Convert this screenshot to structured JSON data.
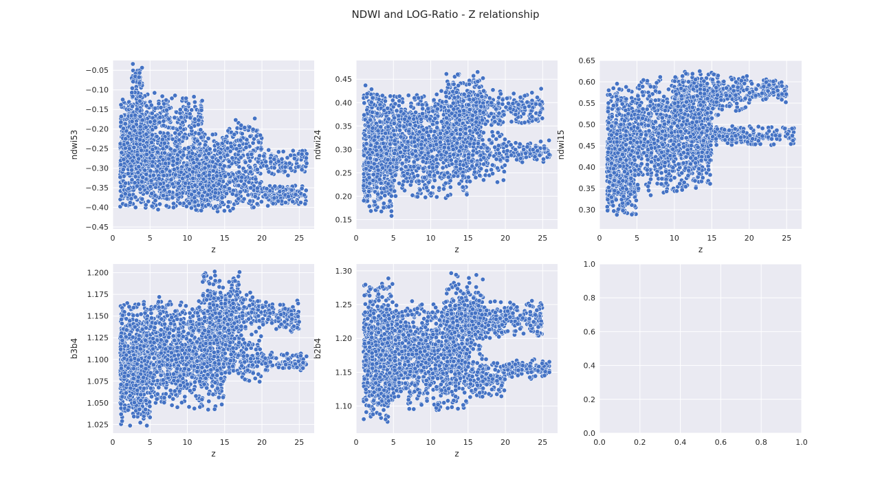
{
  "figure": {
    "title": "NDWI and LOG-Ratio - Z relationship",
    "point_color": "#4472c4",
    "background_color": "#eaeaf2"
  },
  "chart_data": [
    {
      "type": "scatter",
      "xlabel": "z",
      "ylabel": "ndwi53",
      "xlim": [
        0,
        27
      ],
      "ylim": [
        -0.455,
        -0.025
      ],
      "xticks": [
        0,
        5,
        10,
        15,
        20,
        25
      ],
      "xtick_labels": [
        "0",
        "5",
        "10",
        "15",
        "20",
        "25"
      ],
      "yticks": [
        -0.45,
        -0.4,
        -0.35,
        -0.3,
        -0.25,
        -0.2,
        -0.15,
        -0.1,
        -0.05
      ],
      "ytick_labels": [
        "−0.45",
        "−0.40",
        "−0.35",
        "−0.30",
        "−0.25",
        "−0.20",
        "−0.15",
        "−0.10",
        "−0.05"
      ],
      "grid": true,
      "clusters": [
        {
          "x": [
            1,
            5
          ],
          "y": [
            -0.41,
            -0.1
          ],
          "n": 700
        },
        {
          "x": [
            2.5,
            4
          ],
          "y": [
            -0.2,
            -0.03
          ],
          "n": 80
        },
        {
          "x": [
            5,
            15
          ],
          "y": [
            -0.42,
            -0.2
          ],
          "n": 900
        },
        {
          "x": [
            5,
            12
          ],
          "y": [
            -0.25,
            -0.1
          ],
          "n": 200
        },
        {
          "x": [
            10,
            20
          ],
          "y": [
            -0.41,
            -0.26
          ],
          "n": 400
        },
        {
          "x": [
            15,
            20
          ],
          "y": [
            -0.3,
            -0.17
          ],
          "n": 120
        },
        {
          "x": [
            20,
            26
          ],
          "y": [
            -0.4,
            -0.34
          ],
          "n": 150
        },
        {
          "x": [
            20,
            26
          ],
          "y": [
            -0.32,
            -0.25
          ],
          "n": 100
        }
      ]
    },
    {
      "type": "scatter",
      "xlabel": "z",
      "ylabel": "ndwi24",
      "xlim": [
        0,
        27
      ],
      "ylim": [
        0.13,
        0.49
      ],
      "xticks": [
        0,
        5,
        10,
        15,
        20,
        25
      ],
      "xtick_labels": [
        "0",
        "5",
        "10",
        "15",
        "20",
        "25"
      ],
      "yticks": [
        0.15,
        0.2,
        0.25,
        0.3,
        0.35,
        0.4,
        0.45
      ],
      "ytick_labels": [
        "0.15",
        "0.20",
        "0.25",
        "0.30",
        "0.35",
        "0.40",
        "0.45"
      ],
      "grid": true,
      "clusters": [
        {
          "x": [
            1,
            5
          ],
          "y": [
            0.15,
            0.44
          ],
          "n": 700
        },
        {
          "x": [
            5,
            15
          ],
          "y": [
            0.19,
            0.43
          ],
          "n": 1000
        },
        {
          "x": [
            12,
            17
          ],
          "y": [
            0.3,
            0.47
          ],
          "n": 300
        },
        {
          "x": [
            15,
            20
          ],
          "y": [
            0.22,
            0.35
          ],
          "n": 150
        },
        {
          "x": [
            15,
            20
          ],
          "y": [
            0.33,
            0.44
          ],
          "n": 150
        },
        {
          "x": [
            20,
            25
          ],
          "y": [
            0.35,
            0.43
          ],
          "n": 120
        },
        {
          "x": [
            20,
            26
          ],
          "y": [
            0.27,
            0.32
          ],
          "n": 100
        }
      ]
    },
    {
      "type": "scatter",
      "xlabel": "z",
      "ylabel": "ndwi15",
      "xlim": [
        0,
        27
      ],
      "ylim": [
        0.255,
        0.65
      ],
      "xticks": [
        0,
        5,
        10,
        15,
        20,
        25
      ],
      "xtick_labels": [
        "0",
        "5",
        "10",
        "15",
        "20",
        "25"
      ],
      "yticks": [
        0.3,
        0.35,
        0.4,
        0.45,
        0.5,
        0.55,
        0.6,
        0.65
      ],
      "ytick_labels": [
        "0.30",
        "0.35",
        "0.40",
        "0.45",
        "0.50",
        "0.55",
        "0.60",
        "0.65"
      ],
      "grid": true,
      "clusters": [
        {
          "x": [
            1,
            5
          ],
          "y": [
            0.27,
            0.6
          ],
          "n": 700
        },
        {
          "x": [
            5,
            15
          ],
          "y": [
            0.33,
            0.62
          ],
          "n": 1000
        },
        {
          "x": [
            10,
            16
          ],
          "y": [
            0.5,
            0.63
          ],
          "n": 250
        },
        {
          "x": [
            15,
            20
          ],
          "y": [
            0.45,
            0.5
          ],
          "n": 120
        },
        {
          "x": [
            15,
            20
          ],
          "y": [
            0.53,
            0.62
          ],
          "n": 150
        },
        {
          "x": [
            20,
            25
          ],
          "y": [
            0.55,
            0.61
          ],
          "n": 120
        },
        {
          "x": [
            20,
            26
          ],
          "y": [
            0.45,
            0.5
          ],
          "n": 80
        }
      ]
    },
    {
      "type": "scatter",
      "xlabel": "z",
      "ylabel": "b3b4",
      "xlim": [
        0,
        27
      ],
      "ylim": [
        1.015,
        1.21
      ],
      "xticks": [
        0,
        5,
        10,
        15,
        20,
        25
      ],
      "xtick_labels": [
        "0",
        "5",
        "10",
        "15",
        "20",
        "25"
      ],
      "yticks": [
        1.025,
        1.05,
        1.075,
        1.1,
        1.125,
        1.15,
        1.175,
        1.2
      ],
      "ytick_labels": [
        "1.025",
        "1.050",
        "1.075",
        "1.100",
        "1.125",
        "1.150",
        "1.175",
        "1.200"
      ],
      "grid": true,
      "clusters": [
        {
          "x": [
            1,
            5
          ],
          "y": [
            1.022,
            1.17
          ],
          "n": 700
        },
        {
          "x": [
            5,
            15
          ],
          "y": [
            1.04,
            1.175
          ],
          "n": 1000
        },
        {
          "x": [
            12,
            17
          ],
          "y": [
            1.1,
            1.205
          ],
          "n": 300
        },
        {
          "x": [
            15,
            20
          ],
          "y": [
            1.07,
            1.13
          ],
          "n": 150
        },
        {
          "x": [
            15,
            20
          ],
          "y": [
            1.13,
            1.18
          ],
          "n": 150
        },
        {
          "x": [
            20,
            25
          ],
          "y": [
            1.13,
            1.17
          ],
          "n": 120
        },
        {
          "x": [
            20,
            26
          ],
          "y": [
            1.085,
            1.11
          ],
          "n": 100
        }
      ]
    },
    {
      "type": "scatter",
      "xlabel": "z",
      "ylabel": "b2b4",
      "xlim": [
        0,
        27
      ],
      "ylim": [
        1.06,
        1.31
      ],
      "xticks": [
        0,
        5,
        10,
        15,
        20,
        25
      ],
      "xtick_labels": [
        "0",
        "5",
        "10",
        "15",
        "20",
        "25"
      ],
      "yticks": [
        1.1,
        1.15,
        1.2,
        1.25,
        1.3
      ],
      "ytick_labels": [
        "1.10",
        "1.15",
        "1.20",
        "1.25",
        "1.30"
      ],
      "grid": true,
      "clusters": [
        {
          "x": [
            1,
            5
          ],
          "y": [
            1.07,
            1.29
          ],
          "n": 700
        },
        {
          "x": [
            5,
            15
          ],
          "y": [
            1.09,
            1.26
          ],
          "n": 1000
        },
        {
          "x": [
            12,
            17
          ],
          "y": [
            1.15,
            1.3
          ],
          "n": 300
        },
        {
          "x": [
            15,
            20
          ],
          "y": [
            1.11,
            1.17
          ],
          "n": 150
        },
        {
          "x": [
            15,
            20
          ],
          "y": [
            1.2,
            1.26
          ],
          "n": 150
        },
        {
          "x": [
            20,
            25
          ],
          "y": [
            1.2,
            1.26
          ],
          "n": 120
        },
        {
          "x": [
            20,
            26
          ],
          "y": [
            1.14,
            1.17
          ],
          "n": 100
        }
      ]
    },
    {
      "type": "scatter",
      "xlabel": "",
      "ylabel": "",
      "xlim": [
        0,
        1
      ],
      "ylim": [
        0,
        1
      ],
      "xticks": [
        0,
        0.2,
        0.4,
        0.6,
        0.8,
        1.0
      ],
      "xtick_labels": [
        "0.0",
        "0.2",
        "0.4",
        "0.6",
        "0.8",
        "1.0"
      ],
      "yticks": [
        0,
        0.2,
        0.4,
        0.6,
        0.8,
        1.0
      ],
      "ytick_labels": [
        "0.0",
        "0.2",
        "0.4",
        "0.6",
        "0.8",
        "1.0"
      ],
      "grid": true,
      "clusters": []
    }
  ]
}
